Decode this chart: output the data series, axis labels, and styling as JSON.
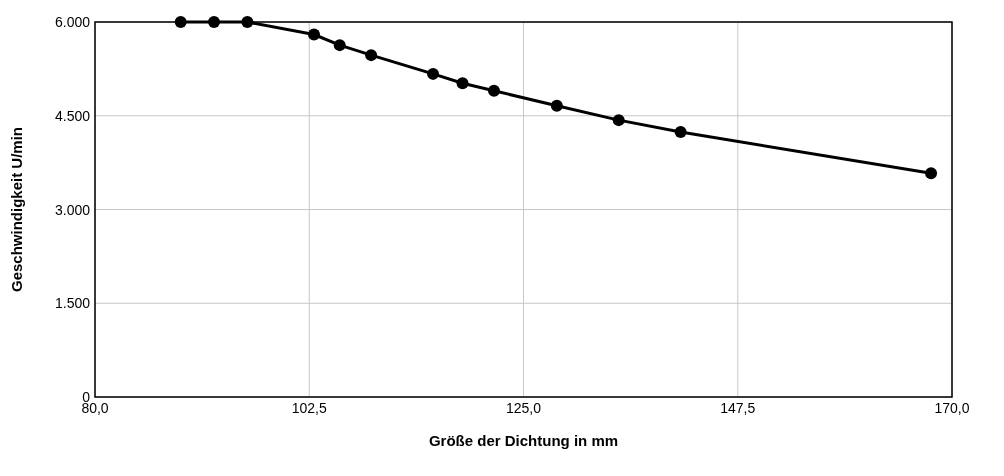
{
  "chart_data": {
    "type": "line",
    "xlabel": "Größe der Dichtung in mm",
    "ylabel": "Geschwindigkeit U/min",
    "x": [
      89,
      92.5,
      96,
      103,
      105.7,
      109,
      115.5,
      118.6,
      121.9,
      128.5,
      135,
      141.5,
      167.8
    ],
    "series": [
      {
        "color": "#000000",
        "values": [
          6000,
          6000,
          6000,
          5800,
          5630,
          5470,
          5170,
          5020,
          4900,
          4660,
          4430,
          4240,
          3580
        ]
      }
    ],
    "xlim": [
      80,
      170
    ],
    "xticks": [
      {
        "value": 80,
        "label": "80,0"
      },
      {
        "value": 102.5,
        "label": "102,5"
      },
      {
        "value": 125,
        "label": "125,0"
      },
      {
        "value": 147.5,
        "label": "147,5"
      },
      {
        "value": 170,
        "label": "170,0"
      }
    ],
    "ylim": [
      0,
      6000
    ],
    "yticks": [
      0,
      {
        "value": 1500,
        "label": "1.500"
      },
      {
        "value": 3000,
        "label": "3.000"
      },
      {
        "value": 4500,
        "label": "4.500"
      },
      {
        "value": 6000,
        "label": "6.000"
      }
    ],
    "grid": true,
    "marker": "circle",
    "line_style": "solid"
  }
}
